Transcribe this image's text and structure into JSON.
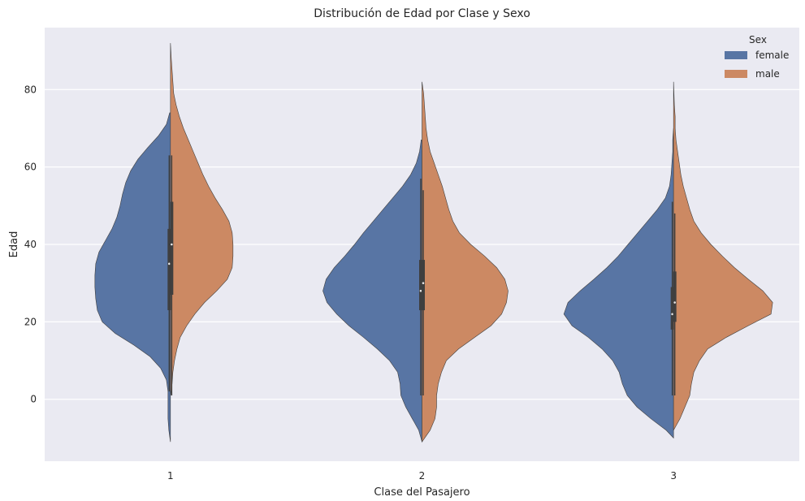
{
  "chart_data": {
    "type": "violin",
    "split": true,
    "title": "Distribución de Edad por Clase y Sexo",
    "xlabel": "Clase del Pasajero",
    "ylabel": "Edad",
    "categories": [
      "1",
      "2",
      "3"
    ],
    "ylim": [
      -16,
      96
    ],
    "yticks": [
      0,
      20,
      40,
      60,
      80
    ],
    "grid": true,
    "legend": {
      "title": "Sex",
      "position": "top-right",
      "entries": [
        {
          "label": "female",
          "color": "#5875a4"
        },
        {
          "label": "male",
          "color": "#cc8963"
        }
      ]
    },
    "series": [
      {
        "name": "female",
        "color": "#5875a4",
        "side": "left",
        "violins": [
          {
            "category": "1",
            "profile": [
              [
                -11,
                0
              ],
              [
                -8,
                2
              ],
              [
                -5,
                3
              ],
              [
                -2,
                3
              ],
              [
                2,
                3
              ],
              [
                5,
                5
              ],
              [
                8,
                12
              ],
              [
                11,
                25
              ],
              [
                14,
                45
              ],
              [
                17,
                68
              ],
              [
                20,
                84
              ],
              [
                23,
                90
              ],
              [
                26,
                92
              ],
              [
                29,
                93
              ],
              [
                32,
                93
              ],
              [
                35,
                92
              ],
              [
                38,
                88
              ],
              [
                41,
                80
              ],
              [
                44,
                72
              ],
              [
                47,
                66
              ],
              [
                50,
                62
              ],
              [
                53,
                59
              ],
              [
                56,
                55
              ],
              [
                59,
                49
              ],
              [
                62,
                40
              ],
              [
                65,
                28
              ],
              [
                68,
                15
              ],
              [
                71,
                5
              ],
              [
                74,
                1
              ]
            ],
            "quartiles": [
              23,
              35,
              44
            ],
            "whisker": [
              2,
              63
            ]
          },
          {
            "category": "2",
            "profile": [
              [
                -11,
                0
              ],
              [
                -8,
                4
              ],
              [
                -5,
                12
              ],
              [
                -2,
                20
              ],
              [
                1,
                26
              ],
              [
                4,
                27
              ],
              [
                7,
                30
              ],
              [
                10,
                40
              ],
              [
                13,
                55
              ],
              [
                16,
                72
              ],
              [
                19,
                90
              ],
              [
                22,
                105
              ],
              [
                25,
                117
              ],
              [
                28,
                122
              ],
              [
                31,
                118
              ],
              [
                34,
                108
              ],
              [
                37,
                95
              ],
              [
                40,
                83
              ],
              [
                43,
                72
              ],
              [
                46,
                60
              ],
              [
                49,
                48
              ],
              [
                52,
                36
              ],
              [
                55,
                24
              ],
              [
                58,
                14
              ],
              [
                61,
                7
              ],
              [
                64,
                3
              ],
              [
                67,
                1
              ]
            ],
            "quartiles": [
              23,
              28,
              36
            ],
            "whisker": [
              1,
              57
            ]
          },
          {
            "category": "3",
            "profile": [
              [
                -10,
                0
              ],
              [
                -8,
                9
              ],
              [
                -5,
                28
              ],
              [
                -2,
                45
              ],
              [
                1,
                57
              ],
              [
                4,
                63
              ],
              [
                7,
                67
              ],
              [
                10,
                75
              ],
              [
                13,
                88
              ],
              [
                16,
                105
              ],
              [
                19,
                125
              ],
              [
                22,
                135
              ],
              [
                25,
                130
              ],
              [
                28,
                115
              ],
              [
                31,
                98
              ],
              [
                34,
                82
              ],
              [
                37,
                68
              ],
              [
                40,
                56
              ],
              [
                43,
                44
              ],
              [
                46,
                32
              ],
              [
                49,
                20
              ],
              [
                52,
                10
              ],
              [
                55,
                5
              ],
              [
                58,
                3
              ],
              [
                61,
                2
              ],
              [
                64,
                1
              ],
              [
                67,
                1
              ],
              [
                70,
                0
              ]
            ],
            "quartiles": [
              18,
              22,
              29
            ],
            "whisker": [
              1,
              51
            ]
          }
        ]
      },
      {
        "name": "male",
        "color": "#cc8963",
        "side": "right",
        "violins": [
          {
            "category": "1",
            "profile": [
              [
                1,
                0
              ],
              [
                4,
                2
              ],
              [
                7,
                3
              ],
              [
                10,
                5
              ],
              [
                13,
                8
              ],
              [
                16,
                12
              ],
              [
                19,
                20
              ],
              [
                22,
                30
              ],
              [
                25,
                42
              ],
              [
                28,
                57
              ],
              [
                31,
                70
              ],
              [
                34,
                76
              ],
              [
                37,
                77
              ],
              [
                40,
                77
              ],
              [
                43,
                76
              ],
              [
                46,
                72
              ],
              [
                49,
                64
              ],
              [
                52,
                55
              ],
              [
                55,
                47
              ],
              [
                58,
                40
              ],
              [
                61,
                34
              ],
              [
                64,
                28
              ],
              [
                67,
                22
              ],
              [
                70,
                16
              ],
              [
                73,
                11
              ],
              [
                76,
                7
              ],
              [
                79,
                4
              ],
              [
                82,
                3
              ],
              [
                85,
                2
              ],
              [
                88,
                1
              ],
              [
                92,
                0
              ]
            ],
            "quartiles": [
              27,
              40,
              51
            ],
            "whisker": [
              1,
              63
            ]
          },
          {
            "category": "2",
            "profile": [
              [
                -11,
                0
              ],
              [
                -8,
                10
              ],
              [
                -5,
                16
              ],
              [
                -2,
                18
              ],
              [
                1,
                18
              ],
              [
                4,
                20
              ],
              [
                7,
                24
              ],
              [
                10,
                30
              ],
              [
                13,
                45
              ],
              [
                16,
                65
              ],
              [
                19,
                85
              ],
              [
                22,
                98
              ],
              [
                25,
                104
              ],
              [
                28,
                106
              ],
              [
                31,
                102
              ],
              [
                34,
                92
              ],
              [
                37,
                77
              ],
              [
                40,
                60
              ],
              [
                43,
                46
              ],
              [
                46,
                38
              ],
              [
                49,
                33
              ],
              [
                52,
                29
              ],
              [
                55,
                25
              ],
              [
                58,
                20
              ],
              [
                61,
                15
              ],
              [
                64,
                10
              ],
              [
                67,
                7
              ],
              [
                70,
                5
              ],
              [
                73,
                4
              ],
              [
                76,
                3
              ],
              [
                79,
                2
              ],
              [
                82,
                0
              ]
            ],
            "quartiles": [
              23,
              30,
              36
            ],
            "whisker": [
              1,
              54
            ]
          },
          {
            "category": "3",
            "profile": [
              [
                -8,
                0
              ],
              [
                -5,
                8
              ],
              [
                -2,
                14
              ],
              [
                1,
                20
              ],
              [
                4,
                22
              ],
              [
                7,
                25
              ],
              [
                10,
                32
              ],
              [
                13,
                42
              ],
              [
                16,
                65
              ],
              [
                19,
                92
              ],
              [
                22,
                120
              ],
              [
                25,
                122
              ],
              [
                28,
                110
              ],
              [
                31,
                92
              ],
              [
                34,
                75
              ],
              [
                37,
                60
              ],
              [
                40,
                46
              ],
              [
                43,
                34
              ],
              [
                46,
                25
              ],
              [
                49,
                20
              ],
              [
                52,
                16
              ],
              [
                55,
                12
              ],
              [
                58,
                9
              ],
              [
                61,
                7
              ],
              [
                64,
                5
              ],
              [
                67,
                3
              ],
              [
                70,
                2
              ],
              [
                73,
                2
              ],
              [
                76,
                1
              ],
              [
                82,
                0
              ]
            ],
            "quartiles": [
              20,
              25,
              33
            ],
            "whisker": [
              1,
              48
            ]
          }
        ]
      }
    ]
  }
}
